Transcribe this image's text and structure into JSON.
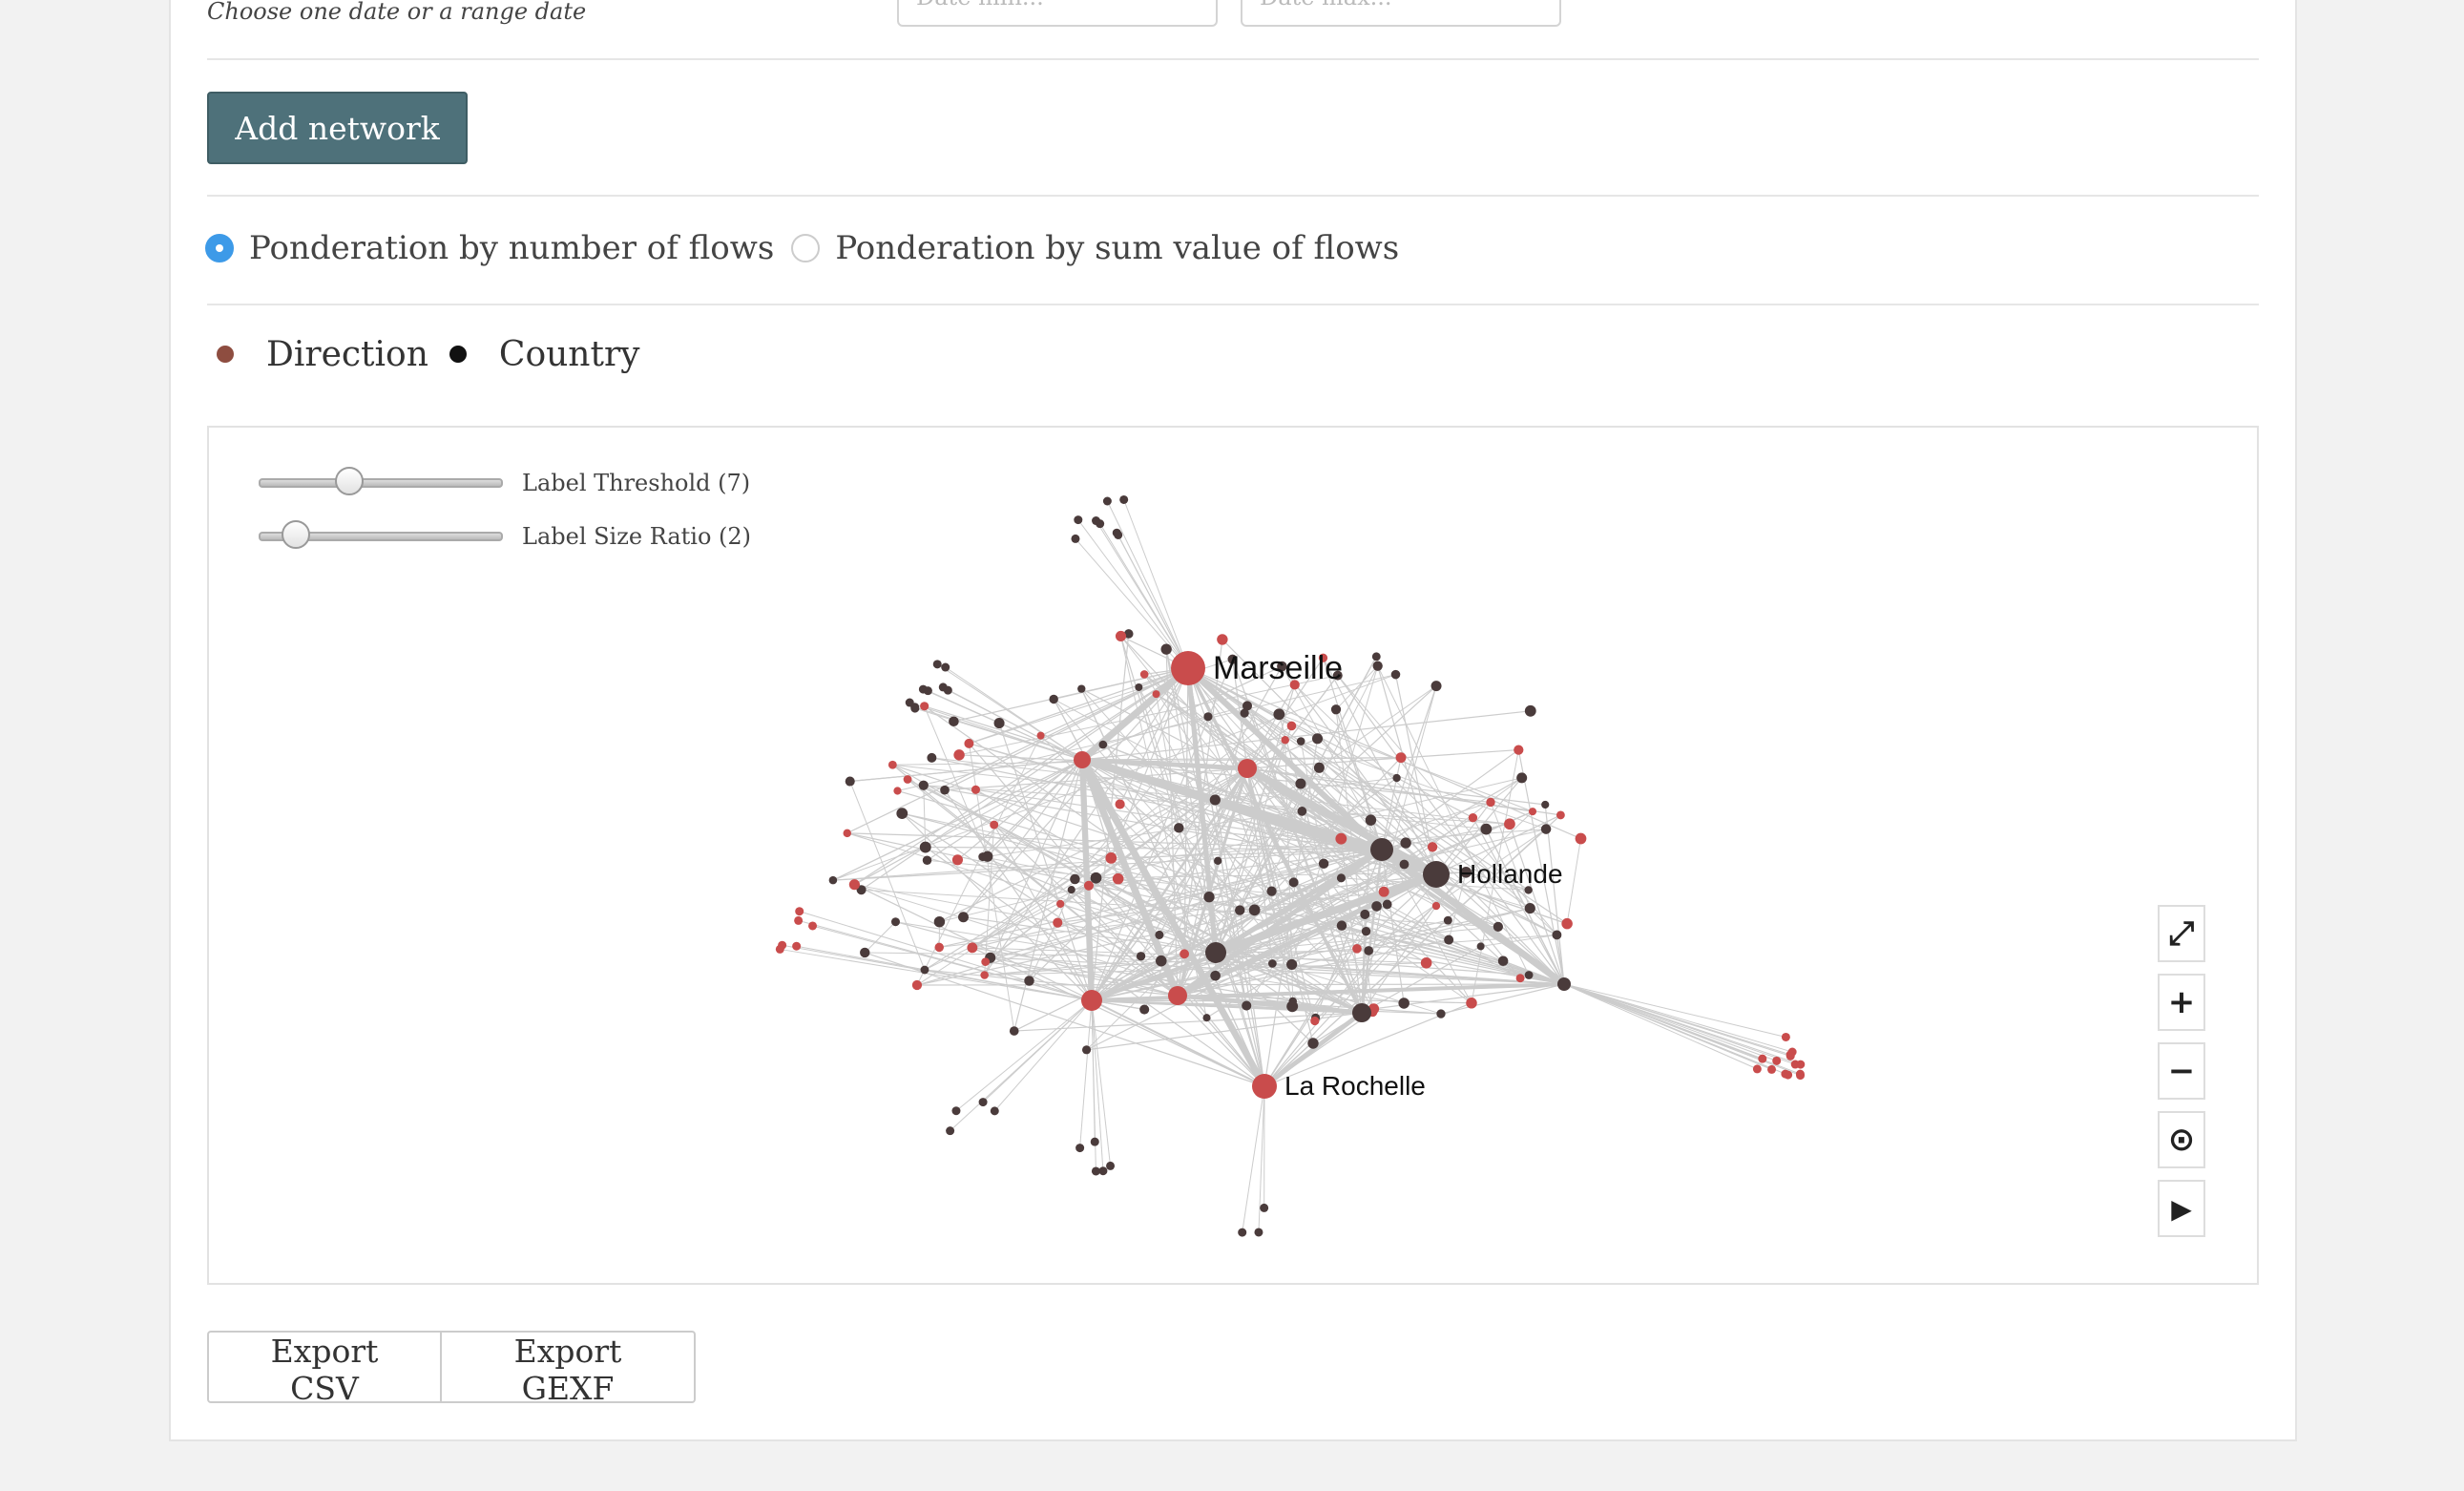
{
  "date_section": {
    "hint": "Choose one date or a range date",
    "start_value": "Date min...",
    "end_value": "Date max..."
  },
  "add_network_label": "Add network",
  "ponderation": {
    "options": [
      "Ponderation by number of flows",
      "Ponderation by sum value of flows"
    ],
    "selected": "Ponderation by number of flows"
  },
  "legend": [
    {
      "label": "Direction",
      "color": "#8e4d40"
    },
    {
      "label": "Country",
      "color": "#111111"
    }
  ],
  "graph": {
    "node_colors": {
      "direction": "#c94c4c",
      "country": "#4a3b3b",
      "edge": "#cccccc"
    },
    "labeled_nodes": [
      "Marseille",
      "Hollande",
      "La Rochelle"
    ],
    "sliders": [
      {
        "label": "Label Threshold (7)",
        "value": 7
      },
      {
        "label": "Label Size Ratio (2)",
        "value": 2
      }
    ],
    "controls": [
      {
        "name": "fullscreen",
        "icon": "expand-icon",
        "glyph": "⤢"
      },
      {
        "name": "zoom-in",
        "icon": "plus-icon",
        "glyph": "+"
      },
      {
        "name": "zoom-out",
        "icon": "minus-icon",
        "glyph": "−"
      },
      {
        "name": "recenter",
        "icon": "target-icon",
        "glyph": "⊙"
      },
      {
        "name": "layout",
        "icon": "play-icon",
        "glyph": "▶"
      }
    ]
  },
  "export": {
    "csv_label": "Export CSV",
    "gexf_label": "Export GEXF"
  }
}
